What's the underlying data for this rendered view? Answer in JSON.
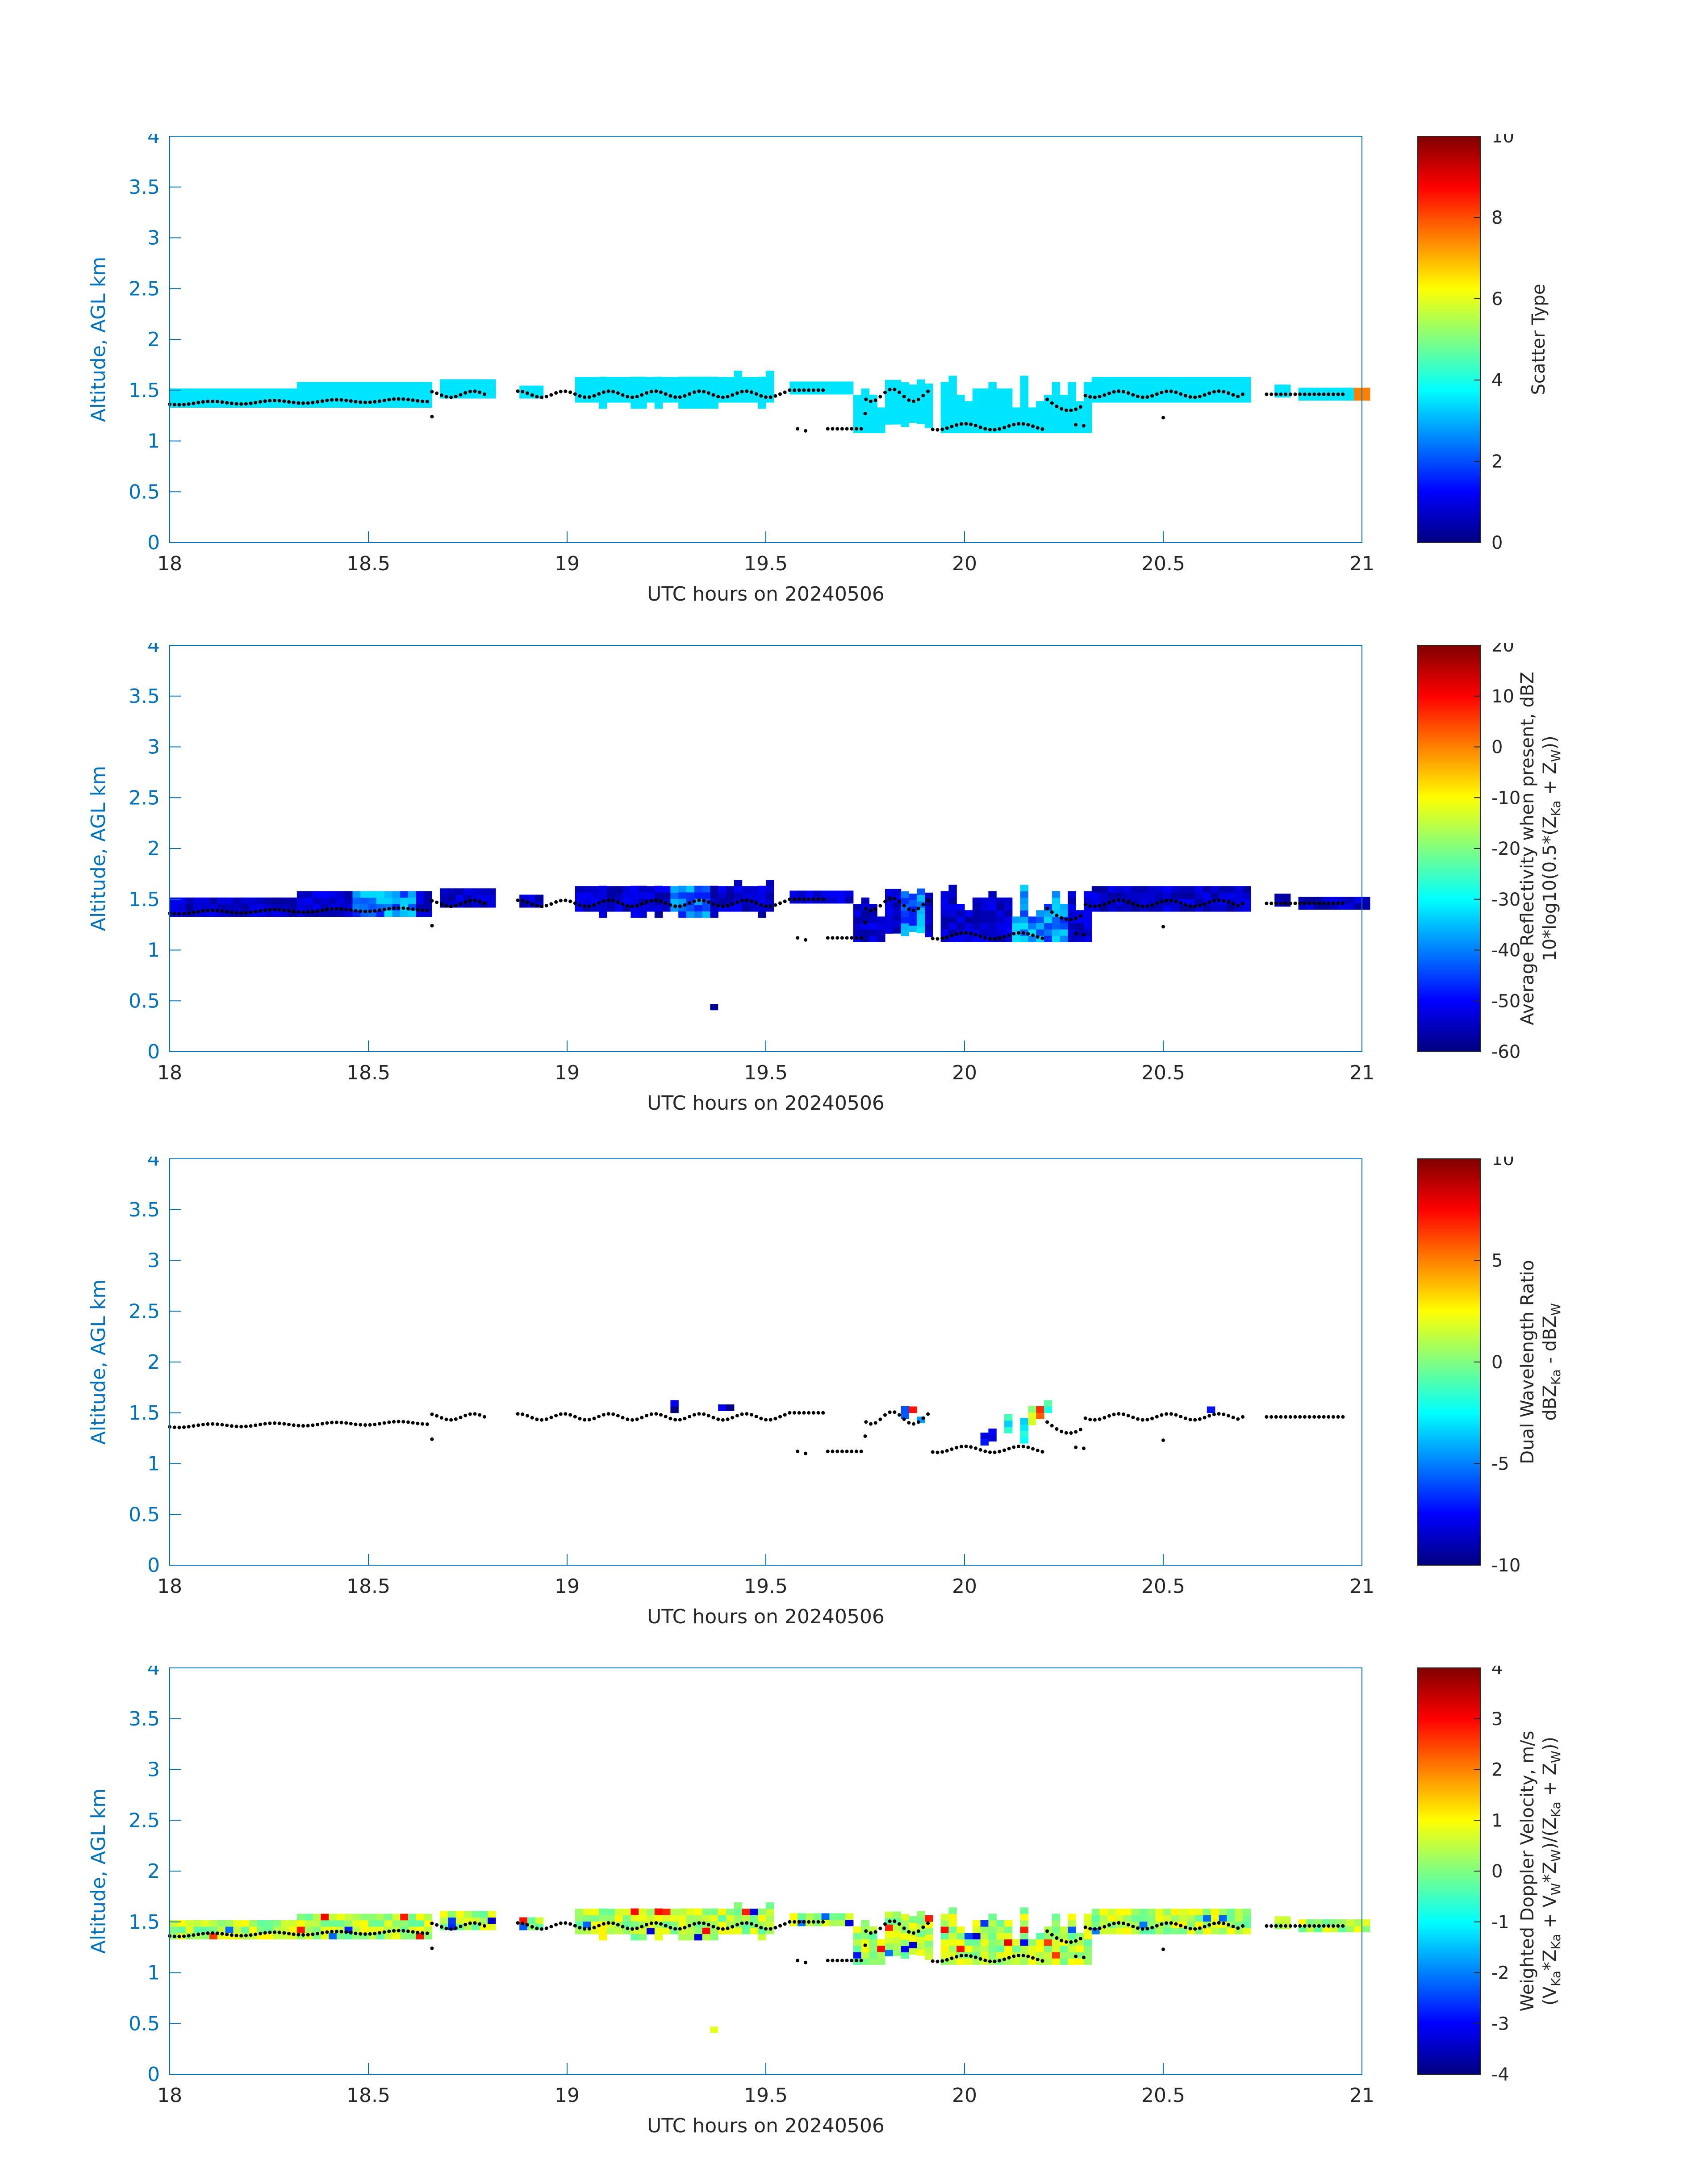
{
  "figure": {
    "background": "#ffffff"
  },
  "chart_data": [
    {
      "type": "heatmap",
      "title": "",
      "xlabel": "UTC hours on 20240506",
      "ylabel": "Altitude, AGL km",
      "xlim": [
        18,
        21
      ],
      "ylim": [
        0,
        4
      ],
      "xticks": [
        "18",
        "18.5",
        "19",
        "19.5",
        "20",
        "20.5",
        "21"
      ],
      "yticks": [
        "0",
        "0.5",
        "1",
        "1.5",
        "2",
        "2.5",
        "3",
        "3.5",
        "4"
      ],
      "colorbar": {
        "label_lines": [
          "Scatter Type"
        ],
        "range": [
          0,
          10
        ],
        "ticks": [
          "0",
          "2",
          "4",
          "6",
          "8",
          "10"
        ],
        "colormap": "jet"
      },
      "value_summary": {
        "typical": 3.5,
        "min": 3.5,
        "max": 7.5
      },
      "cloud_base_marker": "black dots",
      "style": {
        "axis_color": "#0072bd",
        "ylabel_color": "#0072bd",
        "tick_color": "#0072bd"
      }
    },
    {
      "type": "heatmap",
      "title": "",
      "xlabel": "UTC hours on 20240506",
      "ylabel": "Altitude, AGL km",
      "xlim": [
        18,
        21
      ],
      "ylim": [
        0,
        4
      ],
      "xticks": [
        "18",
        "18.5",
        "19",
        "19.5",
        "20",
        "20.5",
        "21"
      ],
      "yticks": [
        "0",
        "0.5",
        "1",
        "1.5",
        "2",
        "2.5",
        "3",
        "3.5",
        "4"
      ],
      "colorbar": {
        "label_lines": [
          "Average Reflectivity when present, dBZ",
          "10*log10(0.5*(Z",
          "Ka",
          " + Z",
          "W",
          "))"
        ],
        "range": [
          -60,
          20
        ],
        "ticks": [
          "-60",
          "-50",
          "-40",
          "-30",
          "-20",
          "-10",
          "0",
          "10",
          "20"
        ],
        "colormap": "jet"
      },
      "value_summary": {
        "min": -60,
        "max": -32,
        "isolated_echo_altitude_km": 0.43,
        "isolated_echo_time_h": 19.37
      },
      "cloud_base_marker": "black dots",
      "style": {
        "axis_color": "#0072bd",
        "ylabel_color": "#0072bd",
        "tick_color": "#0072bd"
      }
    },
    {
      "type": "heatmap",
      "title": "",
      "xlabel": "UTC hours on 20240506",
      "ylabel": "Altitude, AGL km",
      "xlim": [
        18,
        21
      ],
      "ylim": [
        0,
        4
      ],
      "xticks": [
        "18",
        "18.5",
        "19",
        "19.5",
        "20",
        "20.5",
        "21"
      ],
      "yticks": [
        "0",
        "0.5",
        "1",
        "1.5",
        "2",
        "2.5",
        "3",
        "3.5",
        "4"
      ],
      "colorbar": {
        "label_lines": [
          "Dual Wavelength Ratio",
          "dBZ",
          "Ka",
          " - dBZ",
          "W"
        ],
        "range": [
          -10,
          10
        ],
        "ticks": [
          "-10",
          "-5",
          "0",
          "5",
          "10"
        ],
        "colormap": "jet"
      },
      "value_summary": {
        "min": -10,
        "max": 8
      },
      "cloud_base_marker": "black dots",
      "style": {
        "axis_color": "#0072bd",
        "ylabel_color": "#0072bd",
        "tick_color": "#0072bd"
      }
    },
    {
      "type": "heatmap",
      "title": "",
      "xlabel": "UTC hours on 20240506",
      "ylabel": "Altitude, AGL km",
      "xlim": [
        18,
        21
      ],
      "ylim": [
        0,
        4
      ],
      "xticks": [
        "18",
        "18.5",
        "19",
        "19.5",
        "20",
        "20.5",
        "21"
      ],
      "yticks": [
        "0",
        "0.5",
        "1",
        "1.5",
        "2",
        "2.5",
        "3",
        "3.5",
        "4"
      ],
      "colorbar": {
        "label_lines": [
          "Weighted Doppler Velocity, m/s",
          "(V",
          "Ka",
          "*Z",
          "Ka",
          " + V",
          "W",
          "*Z",
          "W",
          ")/(Z",
          "Ka",
          " + Z",
          "W",
          "))"
        ],
        "range": [
          -4,
          4
        ],
        "ticks": [
          "-4",
          "-3",
          "-2",
          "-1",
          "0",
          "1",
          "2",
          "3",
          "4"
        ],
        "colormap": "jet"
      },
      "value_summary": {
        "min": -4,
        "max": 3,
        "isolated_echo_altitude_km": 0.43,
        "isolated_echo_time_h": 19.37
      },
      "cloud_base_marker": "black dots",
      "style": {
        "axis_color": "#0072bd",
        "ylabel_color": "#0072bd",
        "tick_color": "#0072bd"
      }
    }
  ]
}
